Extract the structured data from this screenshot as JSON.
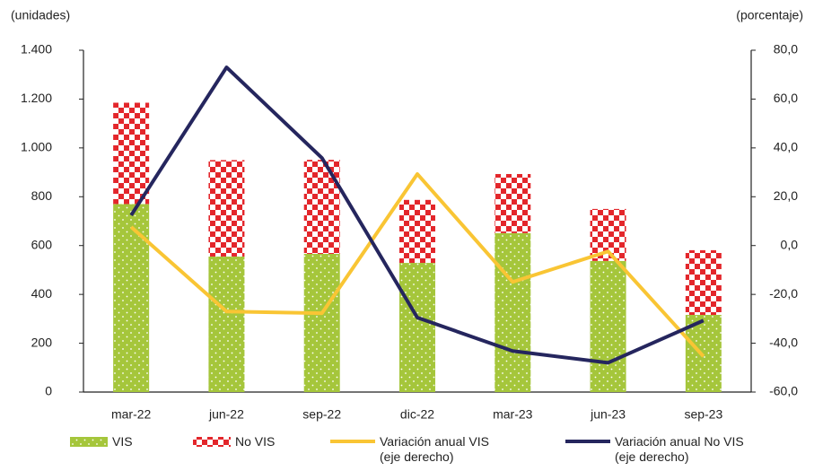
{
  "chart_data": {
    "type": "bar",
    "ylabel": "(unidades)",
    "y2label": "(porcentaje)",
    "categories": [
      "mar-22",
      "jun-22",
      "sep-22",
      "dic-22",
      "mar-23",
      "jun-23",
      "sep-23"
    ],
    "ylim": [
      0,
      1400
    ],
    "yticks": [
      0,
      200,
      400,
      600,
      800,
      {
        "value": 1000,
        "label": "1.000"
      },
      {
        "value": 1200,
        "label": "1.200"
      },
      {
        "value": 1400,
        "label": "1.400"
      }
    ],
    "y2lim": [
      -60,
      80
    ],
    "y2ticks": [
      {
        "value": -60,
        "label": "-60,0"
      },
      {
        "value": -40,
        "label": "-40,0"
      },
      {
        "value": -20,
        "label": "-20,0"
      },
      {
        "value": 0,
        "label": "0,0"
      },
      {
        "value": 20,
        "label": "20,0"
      },
      {
        "value": 40,
        "label": "40,0"
      },
      {
        "value": 60,
        "label": "60,0"
      },
      {
        "value": 80,
        "label": "80,0"
      }
    ],
    "series": [
      {
        "name": "VIS",
        "type": "bar",
        "color": "#a5c63b",
        "values": [
          770,
          555,
          566,
          529,
          651,
          537,
          316
        ]
      },
      {
        "name": "No VIS",
        "type": "bar",
        "color": "#e3262b",
        "values": [
          415,
          395,
          385,
          258,
          242,
          213,
          265
        ]
      },
      {
        "name": "Variación anual VIS (eje derecho)",
        "type": "line",
        "axis": "y2",
        "color": "#f9c534",
        "values": [
          7.6,
          -27.0,
          -27.7,
          29.3,
          -14.9,
          -2.4,
          -45.4
        ]
      },
      {
        "name": "Variación anual No VIS (eje derecho)",
        "type": "line",
        "axis": "y2",
        "color": "#25265e",
        "values": [
          12.4,
          73.0,
          35.9,
          -29.5,
          -43.2,
          -48.0,
          -30.7
        ]
      }
    ]
  }
}
